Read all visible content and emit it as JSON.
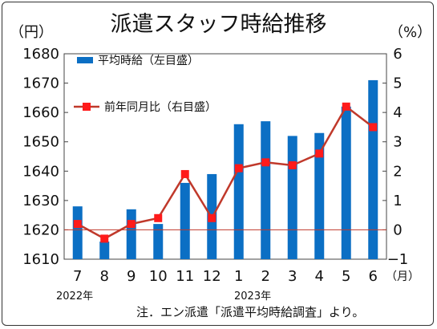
{
  "title": "派遣スタッフ時給推移",
  "left_unit": "（円）",
  "right_unit": "（%）",
  "x_unit": "（月）",
  "year_labels": [
    "2022年",
    "2023年"
  ],
  "note": "注．エン派遣「派遣平均時給調査」より。",
  "colors": {
    "bar": "#0b6fc4",
    "line": "#c0392b",
    "marker": "#ff1a1a",
    "zero_line": "#c0392b"
  },
  "chart_data": {
    "type": "bar+line",
    "categories": [
      "7",
      "8",
      "9",
      "10",
      "11",
      "12",
      "1",
      "2",
      "3",
      "4",
      "5",
      "6"
    ],
    "y_left": {
      "min": 1610,
      "max": 1680,
      "step": 10
    },
    "y_right": {
      "min": -1,
      "max": 6,
      "step": 1
    },
    "grid": false,
    "legend_position": "top-left",
    "series": [
      {
        "name": "平均時給（左目盛）",
        "type": "bar",
        "axis": "left",
        "values": [
          1628,
          1616,
          1627,
          1622,
          1636,
          1639,
          1656,
          1657,
          1652,
          1653,
          1662,
          1671
        ]
      },
      {
        "name": "前年同月比（右目盛）",
        "type": "line",
        "axis": "right",
        "values": [
          0.2,
          -0.3,
          0.2,
          0.4,
          1.9,
          0.4,
          2.1,
          2.3,
          2.2,
          2.6,
          4.2,
          3.5
        ]
      }
    ]
  }
}
